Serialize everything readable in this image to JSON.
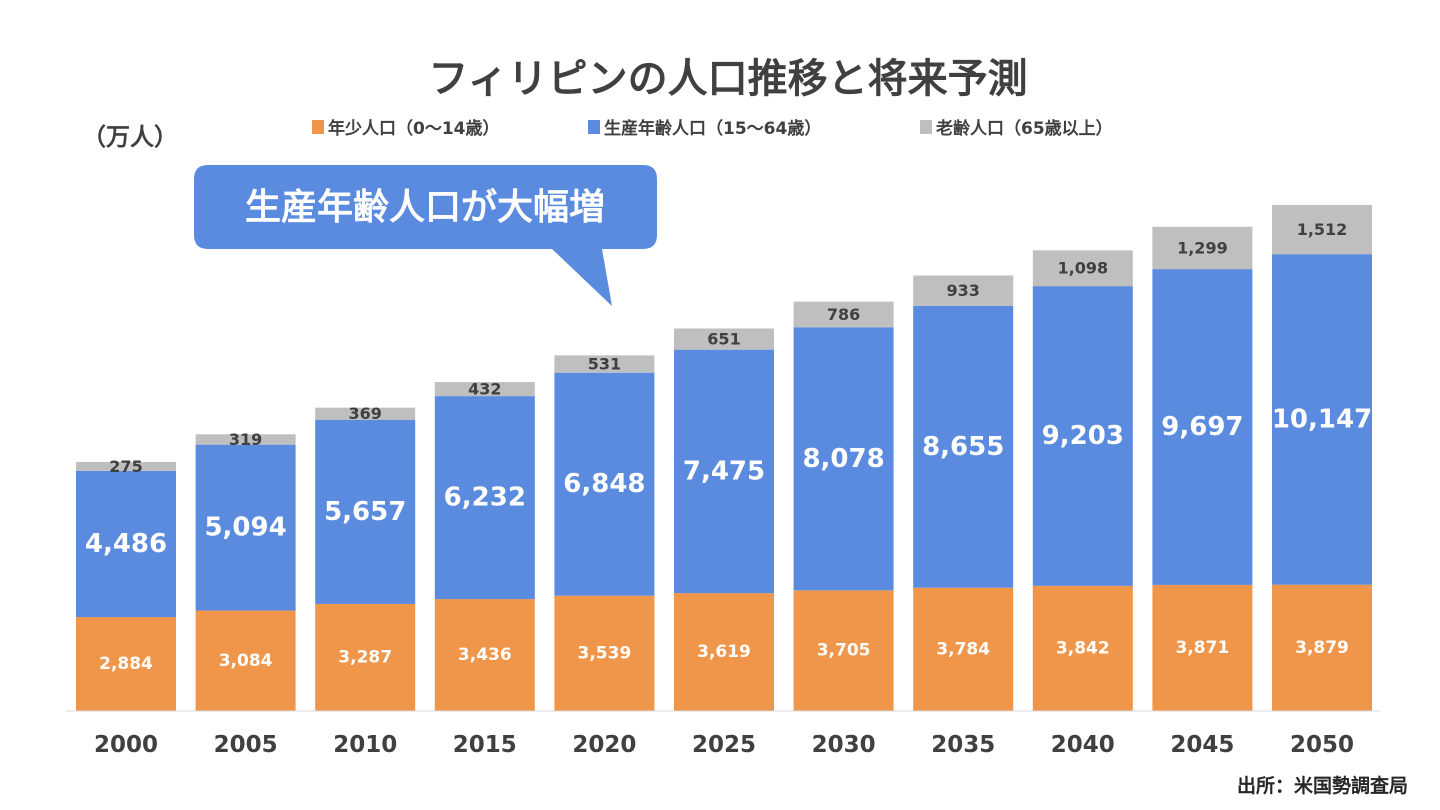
{
  "chart_data": {
    "type": "bar",
    "stacked": true,
    "title": "フィリピンの人口推移と将来予測",
    "ylabel": "（万人）",
    "categories": [
      "2000",
      "2005",
      "2010",
      "2015",
      "2020",
      "2025",
      "2030",
      "2035",
      "2040",
      "2045",
      "2050"
    ],
    "series": [
      {
        "name": "年少人口（0～14歳）",
        "color": "#F0964B",
        "values": [
          2884,
          3084,
          3287,
          3436,
          3539,
          3619,
          3705,
          3784,
          3842,
          3871,
          3879
        ]
      },
      {
        "name": "生産年齢人口（15～64歳）",
        "color": "#5B8BDF",
        "values": [
          4486,
          5094,
          5657,
          6232,
          6848,
          7475,
          8078,
          8655,
          9203,
          9697,
          10147
        ]
      },
      {
        "name": "老齢人口（65歳以上）",
        "color": "#BFBFBF",
        "values": [
          275,
          319,
          369,
          432,
          531,
          651,
          786,
          933,
          1098,
          1299,
          1512
        ]
      }
    ],
    "legend_position": "top",
    "grid": false,
    "annotation": "生産年齢人口が大幅増",
    "source": "出所：米国勢調査局"
  }
}
